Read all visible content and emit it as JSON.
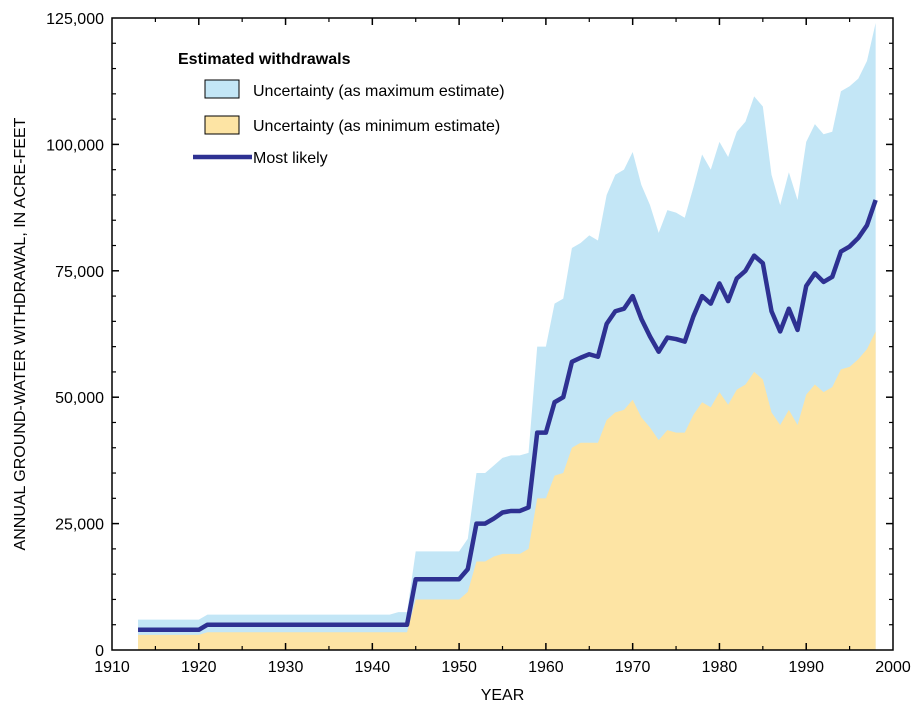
{
  "chart_data": {
    "type": "area",
    "xlabel": "YEAR",
    "ylabel": "ANNUAL GROUND-WATER WITHDRAWAL, IN ACRE-FEET",
    "xlim": [
      1910,
      2000
    ],
    "ylim": [
      0,
      125000
    ],
    "x_ticks": [
      "1910",
      "1920",
      "1930",
      "1940",
      "1950",
      "1960",
      "1970",
      "1980",
      "1990",
      "2000"
    ],
    "y_ticks": [
      "0",
      "25,000",
      "50,000",
      "75,000",
      "100,000",
      "125,000"
    ],
    "grid": false,
    "legend": {
      "title": "Estimated withdrawals",
      "position": "top-left",
      "entries": [
        "Uncertainty (as maximum estimate)",
        "Uncertainty (as minimum estimate)",
        "Most likely"
      ]
    },
    "colors": {
      "max_fill": "#c3e6f6",
      "min_fill": "#fde4a4",
      "line": "#2e3192",
      "axis": "#000000"
    },
    "x": [
      1913,
      1914,
      1915,
      1916,
      1917,
      1918,
      1919,
      1920,
      1921,
      1922,
      1923,
      1924,
      1925,
      1926,
      1927,
      1928,
      1929,
      1930,
      1931,
      1932,
      1933,
      1934,
      1935,
      1936,
      1937,
      1938,
      1939,
      1940,
      1941,
      1942,
      1943,
      1944,
      1945,
      1946,
      1947,
      1948,
      1949,
      1950,
      1951,
      1952,
      1953,
      1954,
      1955,
      1956,
      1957,
      1958,
      1959,
      1960,
      1961,
      1962,
      1963,
      1964,
      1965,
      1966,
      1967,
      1968,
      1969,
      1970,
      1971,
      1972,
      1973,
      1974,
      1975,
      1976,
      1977,
      1978,
      1979,
      1980,
      1981,
      1982,
      1983,
      1984,
      1985,
      1986,
      1987,
      1988,
      1989,
      1990,
      1991,
      1992,
      1993,
      1994,
      1995,
      1996,
      1997,
      1998
    ],
    "series": [
      {
        "name": "Uncertainty (as maximum estimate)",
        "values": [
          6000,
          6000,
          6000,
          6000,
          6000,
          6000,
          6000,
          6000,
          7000,
          7000,
          7000,
          7000,
          7000,
          7000,
          7000,
          7000,
          7000,
          7000,
          7000,
          7000,
          7000,
          7000,
          7000,
          7000,
          7000,
          7000,
          7000,
          7000,
          7000,
          7000,
          7500,
          7500,
          19500,
          19500,
          19500,
          19500,
          19500,
          19500,
          22000,
          35000,
          35000,
          36500,
          38000,
          38500,
          38500,
          39000,
          60000,
          60000,
          68500,
          69500,
          79500,
          80500,
          82000,
          81000,
          90000,
          94000,
          95000,
          98500,
          92000,
          88000,
          82500,
          87000,
          86500,
          85500,
          91500,
          98000,
          95000,
          100500,
          97500,
          102500,
          104500,
          109500,
          107500,
          94000,
          88000,
          94500,
          89000,
          100500,
          104000,
          102000,
          102500,
          110500,
          111500,
          113000,
          116500,
          124000
        ]
      },
      {
        "name": "Most likely",
        "values": [
          4000,
          4000,
          4000,
          4000,
          4000,
          4000,
          4000,
          4000,
          5000,
          5000,
          5000,
          5000,
          5000,
          5000,
          5000,
          5000,
          5000,
          5000,
          5000,
          5000,
          5000,
          5000,
          5000,
          5000,
          5000,
          5000,
          5000,
          5000,
          5000,
          5000,
          5000,
          5000,
          14000,
          14000,
          14000,
          14000,
          14000,
          14000,
          16000,
          25000,
          25000,
          26000,
          27200,
          27500,
          27500,
          28200,
          43000,
          43000,
          49000,
          50000,
          57000,
          57800,
          58500,
          58000,
          64500,
          67000,
          67500,
          70000,
          65500,
          62000,
          59000,
          61800,
          61500,
          61000,
          66000,
          70000,
          68500,
          72500,
          69000,
          73500,
          75000,
          78000,
          76500,
          67000,
          63000,
          67500,
          63300,
          72000,
          74500,
          72800,
          73800,
          78800,
          79800,
          81500,
          84000,
          89000
        ]
      },
      {
        "name": "Uncertainty (as minimum estimate)",
        "values": [
          3000,
          3000,
          3000,
          3000,
          3000,
          3000,
          3000,
          3000,
          3500,
          3500,
          3500,
          3500,
          3500,
          3500,
          3500,
          3500,
          3500,
          3500,
          3500,
          3500,
          3500,
          3500,
          3500,
          3500,
          3500,
          3500,
          3500,
          3500,
          3500,
          3500,
          3500,
          3500,
          10000,
          10000,
          10000,
          10000,
          10000,
          10000,
          11500,
          17500,
          17500,
          18500,
          19000,
          19000,
          19000,
          20000,
          30000,
          30000,
          34500,
          35000,
          40000,
          41000,
          41000,
          41000,
          45500,
          47000,
          47500,
          49500,
          46000,
          44000,
          41500,
          43500,
          43000,
          43000,
          46500,
          49000,
          48000,
          51000,
          48500,
          51500,
          52500,
          55000,
          53500,
          47000,
          44500,
          47500,
          44500,
          50500,
          52500,
          51000,
          52000,
          55500,
          56000,
          57500,
          59500,
          63000
        ]
      }
    ]
  }
}
